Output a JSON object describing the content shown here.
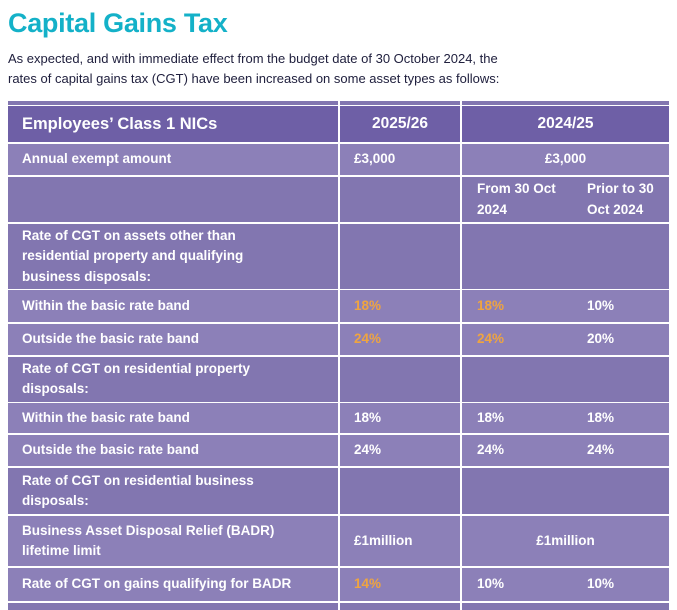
{
  "page": {
    "title": "Capital Gains Tax",
    "intro_line1": "As expected, and with immediate effect from the budget date of 30 October 2024, the",
    "intro_line2": "rates of capital gains tax (CGT) have been increased on some asset types as follows:"
  },
  "colors": {
    "title_accent": "#14b1c8",
    "intro_text": "#20203e",
    "table_header_bg": "#6e5fa6",
    "table_section_bg": "#8276b0",
    "table_data_bg": "#8c80b8",
    "table_text": "#ffffff",
    "highlight_value": "#efa440",
    "grid_lines": "#ffffff"
  },
  "table": {
    "header": {
      "label": "Employees’ Class 1 NICs",
      "col_2025_26": "2025/26",
      "col_2024_25": "2024/25"
    },
    "sub_header": {
      "from": "From 30 Oct\n2024",
      "prior": "Prior to 30\nOct 2024"
    },
    "rows": {
      "annual_exempt": {
        "label": "Annual exempt amount",
        "v2526": "£3,000",
        "v2425": "£3,000"
      },
      "section_other_assets": {
        "label": "Rate of CGT on assets other than\nresidential property and qualifying\nbusiness disposals:"
      },
      "other_within": {
        "label": "Within the basic rate band",
        "v2526": "18%",
        "from": "18%",
        "prior": "10%"
      },
      "other_outside": {
        "label": "Outside the basic rate band",
        "v2526": "24%",
        "from": "24%",
        "prior": "20%"
      },
      "section_res_property": {
        "label": "Rate of CGT on residential property\ndisposals:"
      },
      "resprop_within": {
        "label": "Within the basic rate band",
        "v2526": "18%",
        "from": "18%",
        "prior": "18%"
      },
      "resprop_outside": {
        "label": "Outside the basic rate band",
        "v2526": "24%",
        "from": "24%",
        "prior": "24%"
      },
      "section_res_business": {
        "label": "Rate of CGT on residential business\ndisposals:"
      },
      "badr_limit": {
        "label": "Business Asset Disposal Relief (BADR)\nlifetime limit",
        "v2526": "£1million",
        "v2425": "£1million"
      },
      "badr_rate": {
        "label": "Rate of CGT on gains qualifying for BADR",
        "v2526": "14%",
        "from": "10%",
        "prior": "10%"
      }
    }
  }
}
